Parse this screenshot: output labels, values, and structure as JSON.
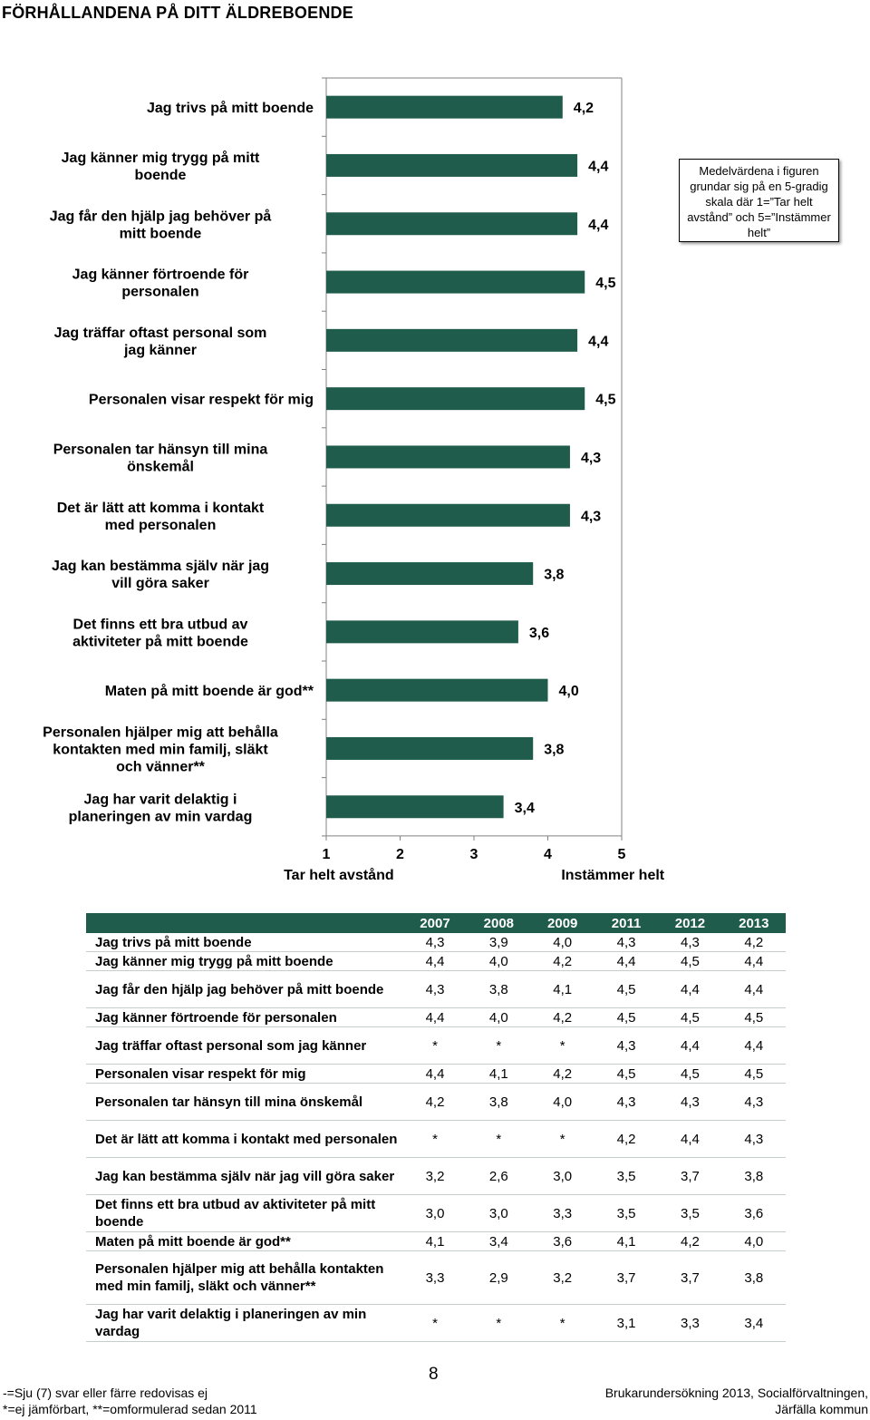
{
  "page_title": "FÖRHÅLLANDENA PÅ DITT ÄLDREBOENDE",
  "note": "Medelvärdena i figuren grundar sig på en 5-gradig skala där 1=”Tar helt avstånd” och 5=”Instämmer helt”",
  "colors": {
    "bar": "#1f5c4b",
    "table_header": "#1f5c4b",
    "axis": "#808080"
  },
  "chart_data": {
    "type": "bar",
    "orientation": "horizontal",
    "categories": [
      "Jag trivs på mitt boende",
      "Jag känner mig trygg på mitt boende",
      "Jag får den hjälp jag behöver på mitt boende",
      "Jag känner förtroende för personalen",
      "Jag träffar oftast personal som jag känner",
      "Personalen visar respekt för mig",
      "Personalen tar hänsyn till mina önskemål",
      "Det är lätt att komma i kontakt med personalen",
      "Jag kan bestämma själv när jag vill göra saker",
      "Det finns ett bra utbud av aktiviteter på mitt boende",
      "Maten på mitt boende är god**",
      "Personalen hjälper mig att behålla kontakten med min familj, släkt och vänner**",
      "Jag har varit delaktig i planeringen av min vardag"
    ],
    "values": [
      4.2,
      4.4,
      4.4,
      4.5,
      4.4,
      4.5,
      4.3,
      4.3,
      3.8,
      3.6,
      4.0,
      3.8,
      3.4
    ],
    "value_labels": [
      "4,2",
      "4,4",
      "4,4",
      "4,5",
      "4,4",
      "4,5",
      "4,3",
      "4,3",
      "3,8",
      "3,6",
      "4,0",
      "3,8",
      "3,4"
    ],
    "xlim": [
      1,
      5
    ],
    "xticks": [
      "1",
      "2",
      "3",
      "4",
      "5"
    ],
    "x_end_labels": {
      "low": "Tar helt avstånd",
      "high": "Instämmer helt"
    },
    "grid": false
  },
  "table": {
    "years": [
      "2007",
      "2008",
      "2009",
      "2011",
      "2012",
      "2013"
    ],
    "rows": [
      {
        "label": "Jag trivs på mitt boende",
        "values": [
          "4,3",
          "3,9",
          "4,0",
          "4,3",
          "4,3",
          "4,2"
        ]
      },
      {
        "label": "Jag känner mig trygg på mitt boende",
        "values": [
          "4,4",
          "4,0",
          "4,2",
          "4,4",
          "4,5",
          "4,4"
        ]
      },
      {
        "label": "Jag får den hjälp jag behöver på mitt boende",
        "values": [
          "4,3",
          "3,8",
          "4,1",
          "4,5",
          "4,4",
          "4,4"
        ]
      },
      {
        "label": "Jag känner förtroende för personalen",
        "values": [
          "4,4",
          "4,0",
          "4,2",
          "4,5",
          "4,5",
          "4,5"
        ]
      },
      {
        "label": "Jag träffar oftast personal som jag känner",
        "values": [
          "*",
          "*",
          "*",
          "4,3",
          "4,4",
          "4,4"
        ]
      },
      {
        "label": "Personalen visar respekt för mig",
        "values": [
          "4,4",
          "4,1",
          "4,2",
          "4,5",
          "4,5",
          "4,5"
        ]
      },
      {
        "label": "Personalen tar hänsyn till mina önskemål",
        "values": [
          "4,2",
          "3,8",
          "4,0",
          "4,3",
          "4,3",
          "4,3"
        ]
      },
      {
        "label": "Det är lätt att komma i kontakt med personalen",
        "values": [
          "*",
          "*",
          "*",
          "4,2",
          "4,4",
          "4,3"
        ]
      },
      {
        "label": "Jag kan bestämma själv när jag vill göra saker",
        "values": [
          "3,2",
          "2,6",
          "3,0",
          "3,5",
          "3,7",
          "3,8"
        ]
      },
      {
        "label": "Det finns ett bra utbud av aktiviteter på mitt boende",
        "values": [
          "3,0",
          "3,0",
          "3,3",
          "3,5",
          "3,5",
          "3,6"
        ]
      },
      {
        "label": "Maten på mitt boende är god**",
        "values": [
          "4,1",
          "3,4",
          "3,6",
          "4,1",
          "4,2",
          "4,0"
        ]
      },
      {
        "label": "Personalen hjälper mig att behålla kontakten med min familj, släkt och vänner**",
        "values": [
          "3,3",
          "2,9",
          "3,2",
          "3,7",
          "3,7",
          "3,8"
        ]
      },
      {
        "label": "Jag har varit delaktig i planeringen av min vardag",
        "values": [
          "*",
          "*",
          "*",
          "3,1",
          "3,3",
          "3,4"
        ]
      }
    ]
  },
  "footer": {
    "left_line1": "-=Sju (7) svar eller färre redovisas ej",
    "left_line2": "*=ej jämförbart, **=omformulerad sedan 2011",
    "page_number": "8",
    "right_line1": "Brukarundersökning 2013, Socialförvaltningen,",
    "right_line2": "Järfälla kommun"
  }
}
